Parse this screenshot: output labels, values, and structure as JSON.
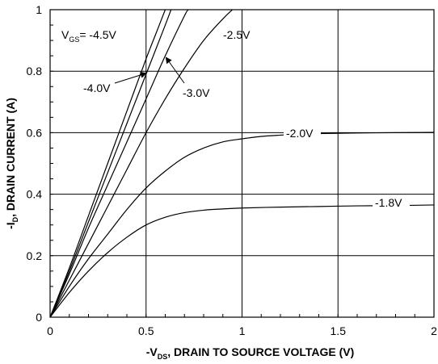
{
  "chart_data": {
    "type": "line",
    "xlabel": {
      "pre": "-V",
      "sub": "DS",
      "post": ", DRAIN TO SOURCE VOLTAGE (V)"
    },
    "ylabel": {
      "pre": "-I",
      "sub": "D",
      "post": ", DRAIN CURRENT (A)"
    },
    "xlim": [
      0,
      2
    ],
    "ylim": [
      0,
      1
    ],
    "xticks": [
      0,
      0.5,
      1,
      1.5,
      2
    ],
    "xtick_labels": [
      "0",
      "0.5",
      "1",
      "1.5",
      "2"
    ],
    "yticks": [
      0,
      0.2,
      0.4,
      0.6,
      0.8,
      1
    ],
    "ytick_labels": [
      "0",
      "0.2",
      "0.4",
      "0.6",
      "0.8",
      "1"
    ],
    "grid": true,
    "legend_header": {
      "pre": "V",
      "sub": "GS",
      "post": "= -4.5V"
    },
    "series": [
      {
        "name": "-4.5V",
        "x": [
          0,
          0.1,
          0.2,
          0.3,
          0.4,
          0.5,
          0.55,
          0.6
        ],
        "y": [
          0,
          0.16,
          0.33,
          0.5,
          0.67,
          0.84,
          0.92,
          1.0
        ]
      },
      {
        "name": "-4.0V",
        "x": [
          0,
          0.1,
          0.2,
          0.3,
          0.4,
          0.5,
          0.6,
          0.63
        ],
        "y": [
          0,
          0.15,
          0.31,
          0.47,
          0.63,
          0.79,
          0.95,
          1.0
        ]
      },
      {
        "name": "-3.0V",
        "x": [
          0,
          0.1,
          0.2,
          0.3,
          0.4,
          0.5,
          0.6,
          0.7,
          0.72
        ],
        "y": [
          0,
          0.14,
          0.29,
          0.43,
          0.57,
          0.71,
          0.85,
          0.98,
          1.0
        ]
      },
      {
        "name": "-2.5V",
        "x": [
          0,
          0.1,
          0.2,
          0.3,
          0.4,
          0.5,
          0.6,
          0.7,
          0.8,
          0.9,
          0.95
        ],
        "y": [
          0,
          0.12,
          0.24,
          0.36,
          0.48,
          0.6,
          0.71,
          0.81,
          0.9,
          0.97,
          1.0
        ]
      },
      {
        "name": "-2.0V",
        "x": [
          0,
          0.1,
          0.2,
          0.3,
          0.4,
          0.5,
          0.6,
          0.7,
          0.8,
          0.9,
          1.0,
          1.1,
          1.2,
          1.3,
          1.4,
          1.6,
          1.8,
          2.0
        ],
        "y": [
          0,
          0.1,
          0.19,
          0.27,
          0.35,
          0.42,
          0.475,
          0.52,
          0.55,
          0.57,
          0.58,
          0.588,
          0.592,
          0.595,
          0.597,
          0.599,
          0.6,
          0.601
        ]
      },
      {
        "name": "-1.8V",
        "x": [
          0,
          0.1,
          0.2,
          0.3,
          0.4,
          0.5,
          0.6,
          0.7,
          0.8,
          0.9,
          1.0,
          1.2,
          1.4,
          1.6,
          1.8,
          2.0
        ],
        "y": [
          0,
          0.08,
          0.15,
          0.21,
          0.26,
          0.3,
          0.325,
          0.34,
          0.348,
          0.352,
          0.355,
          0.358,
          0.36,
          0.362,
          0.363,
          0.365
        ]
      }
    ],
    "annotations": [
      "-4.5V",
      "-4.0V",
      "-3.0V",
      "-2.5V",
      "-2.0V",
      "-1.8V"
    ]
  }
}
